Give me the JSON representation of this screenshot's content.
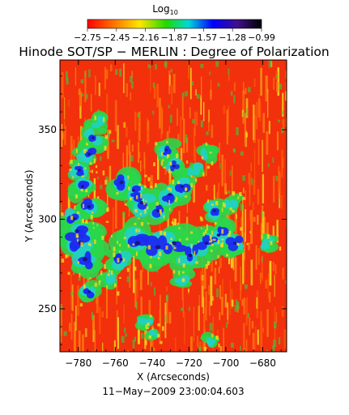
{
  "colorbar": {
    "title": "Log",
    "title_subscript": "10",
    "tick_labels": [
      "−2.75",
      "−2.45",
      "−2.16",
      "−1.87",
      "−1.57",
      "−1.28",
      "−0.99"
    ],
    "colors": [
      "#ff0000",
      "#ff7a00",
      "#ffe600",
      "#22d800",
      "#00d8d8",
      "#0000ff",
      "#40108a",
      "#000000"
    ]
  },
  "title": "Hinode SOT/SP − MERLIN : Degree of Polarization",
  "axes": {
    "xlabel": "X (Arcseconds)",
    "ylabel": "Y (Arcseconds)",
    "x_ticks": [
      "−780",
      "−760",
      "−740",
      "−720",
      "−700",
      "−680"
    ],
    "y_ticks": [
      "350",
      "300",
      "250"
    ],
    "x_tick_values": [
      -780,
      -760,
      -740,
      -720,
      -700,
      -680
    ],
    "y_tick_values": [
      350,
      300,
      250
    ],
    "xlim": [
      -790,
      -667
    ],
    "ylim": [
      226,
      389
    ]
  },
  "timestamp": "11−May−2009 23:00:04.603",
  "map_colors": {
    "background": "#f2300c",
    "orange": "#ff7a10",
    "yellow": "#f2dc1a",
    "green": "#2ad64a",
    "cyan": "#22d0c4",
    "blue": "#1c2bf0",
    "navy": "#1a1488"
  }
}
